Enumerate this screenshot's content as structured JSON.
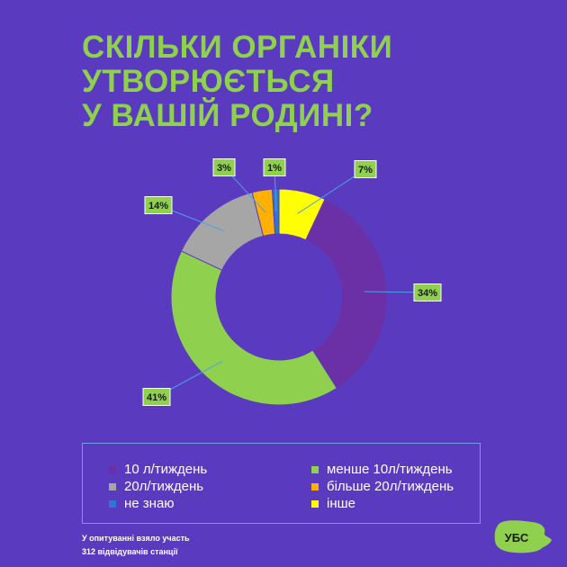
{
  "title_lines": [
    "СКІЛЬКИ ОРГАНІКИ",
    "УТВОРЮЄТЬСЯ",
    "У ВАШІЙ РОДИНІ?"
  ],
  "chart_data": {
    "type": "pie",
    "series": [
      {
        "name": "10 л/тиждень",
        "value": 34,
        "label": "34%",
        "color": "#6b2fa6"
      },
      {
        "name": "менше 10л/тиждень",
        "value": 41,
        "label": "41%",
        "color": "#8fd14f"
      },
      {
        "name": "20л/тиждень",
        "value": 14,
        "label": "14%",
        "color": "#a6a6a6"
      },
      {
        "name": "більше 20л/тиждень",
        "value": 3,
        "label": "3%",
        "color": "#ffb000"
      },
      {
        "name": "не знаю",
        "value": 1,
        "label": "1%",
        "color": "#2e75d6"
      },
      {
        "name": "інше",
        "value": 7,
        "label": "7%",
        "color": "#ffff00"
      }
    ],
    "legend": [
      {
        "label": "10 л/тиждень",
        "color": "#6b2fa6"
      },
      {
        "label": "менше 10л/тиждень",
        "color": "#8fd14f"
      },
      {
        "label": "20л/тиждень",
        "color": "#a6a6a6"
      },
      {
        "label": "більше 20л/тиждень",
        "color": "#ffb000"
      },
      {
        "label": "не знаю",
        "color": "#2e75d6"
      },
      {
        "label": "інше",
        "color": "#ffff00"
      }
    ],
    "legend_position": "bottom"
  },
  "footnote": [
    "У опитуванні взяло участь",
    "312 відвідувачів станції"
  ],
  "logo_text": "УБС",
  "colors": {
    "background": "#5a3bbf",
    "accent": "#8fd14f",
    "connector": "#4fa0e6"
  }
}
